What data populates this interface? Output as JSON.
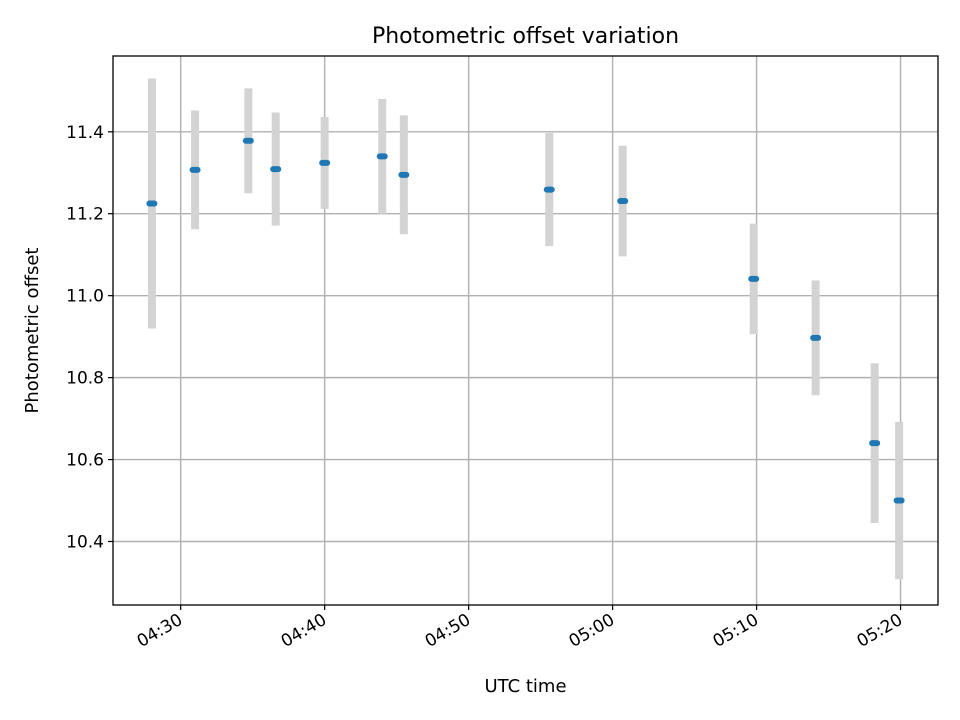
{
  "chart_data": {
    "type": "scatter",
    "title": "Photometric offset variation",
    "xlabel": "UTC time",
    "ylabel": "Photometric offset",
    "grid": true,
    "x_unit": "minutes since 04:00 UTC",
    "xlim": [
      25.3,
      82.6
    ],
    "ylim": [
      10.245,
      11.585
    ],
    "x_ticks": [
      {
        "value": 30,
        "label": "04:30"
      },
      {
        "value": 40,
        "label": "04:40"
      },
      {
        "value": 50,
        "label": "04:50"
      },
      {
        "value": 60,
        "label": "05:00"
      },
      {
        "value": 70,
        "label": "05:10"
      },
      {
        "value": 80,
        "label": "05:20"
      }
    ],
    "y_ticks": [
      {
        "value": 10.4,
        "label": "10.4"
      },
      {
        "value": 10.6,
        "label": "10.6"
      },
      {
        "value": 10.8,
        "label": "10.8"
      },
      {
        "value": 11.0,
        "label": "11.0"
      },
      {
        "value": 11.2,
        "label": "11.2"
      },
      {
        "value": 11.4,
        "label": "11.4"
      }
    ],
    "series": [
      {
        "name": "Photometric offset",
        "marker_color": "#1f77b4",
        "errorbar_color": "#d3d3d3",
        "points": [
          {
            "x": 28.0,
            "y": 11.225,
            "err": 0.305
          },
          {
            "x": 31.0,
            "y": 11.307,
            "err": 0.145
          },
          {
            "x": 34.7,
            "y": 11.378,
            "err": 0.128
          },
          {
            "x": 36.6,
            "y": 11.309,
            "err": 0.138
          },
          {
            "x": 40.0,
            "y": 11.324,
            "err": 0.112
          },
          {
            "x": 44.0,
            "y": 11.34,
            "err": 0.14
          },
          {
            "x": 45.5,
            "y": 11.295,
            "err": 0.145
          },
          {
            "x": 55.6,
            "y": 11.259,
            "err": 0.138
          },
          {
            "x": 60.7,
            "y": 11.231,
            "err": 0.135
          },
          {
            "x": 69.8,
            "y": 11.041,
            "err": 0.135
          },
          {
            "x": 74.1,
            "y": 10.897,
            "err": 0.14
          },
          {
            "x": 78.2,
            "y": 10.64,
            "err": 0.195
          },
          {
            "x": 79.9,
            "y": 10.5,
            "err": 0.192
          }
        ]
      }
    ]
  }
}
